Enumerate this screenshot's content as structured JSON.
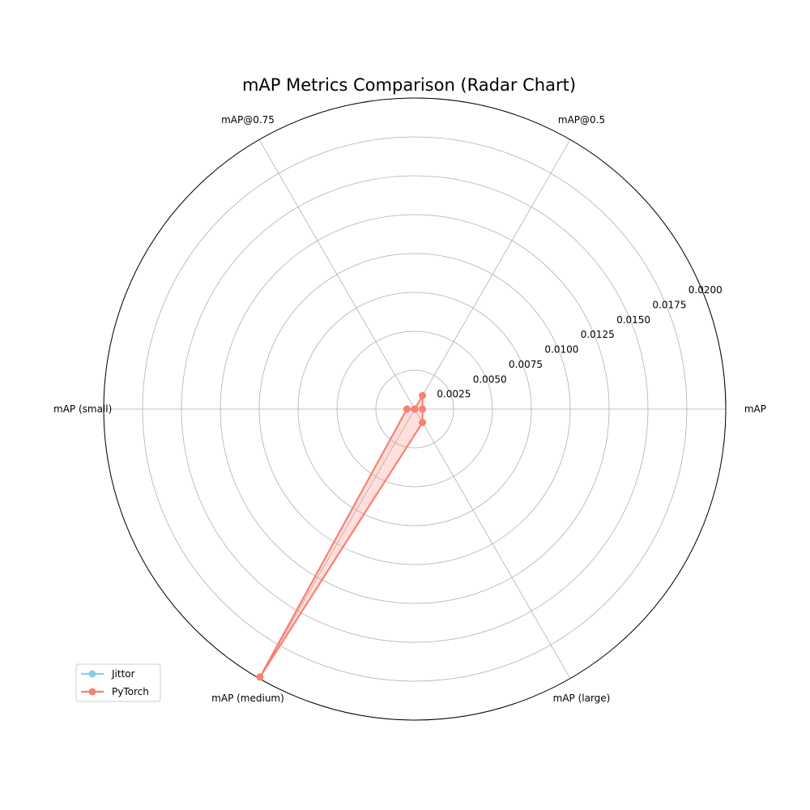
{
  "chart_data": {
    "type": "radar",
    "title": "mAP Metrics Comparison (Radar Chart)",
    "axes": [
      "mAP",
      "mAP@0.5",
      "mAP@0.75",
      "mAP (small)",
      "mAP (medium)",
      "mAP (large)"
    ],
    "rlim": [
      0,
      0.02
    ],
    "rticks": [
      "0.0025",
      "0.0050",
      "0.0075",
      "0.0100",
      "0.0125",
      "0.0150",
      "0.0175",
      "0.0200"
    ],
    "rtick_values": [
      0.0025,
      0.005,
      0.0075,
      0.01,
      0.0125,
      0.015,
      0.0175,
      0.02
    ],
    "grid": true,
    "legend_position": "lower-left",
    "series": [
      {
        "name": "Jittor",
        "color": "#87ceeb",
        "values": [
          0.0,
          0.0,
          0.0,
          0.0,
          0.0,
          0.0
        ]
      },
      {
        "name": "PyTorch",
        "color": "#fa8072",
        "values": [
          0.0005,
          0.001,
          0.0,
          0.0005,
          0.0199,
          0.001
        ]
      }
    ]
  }
}
